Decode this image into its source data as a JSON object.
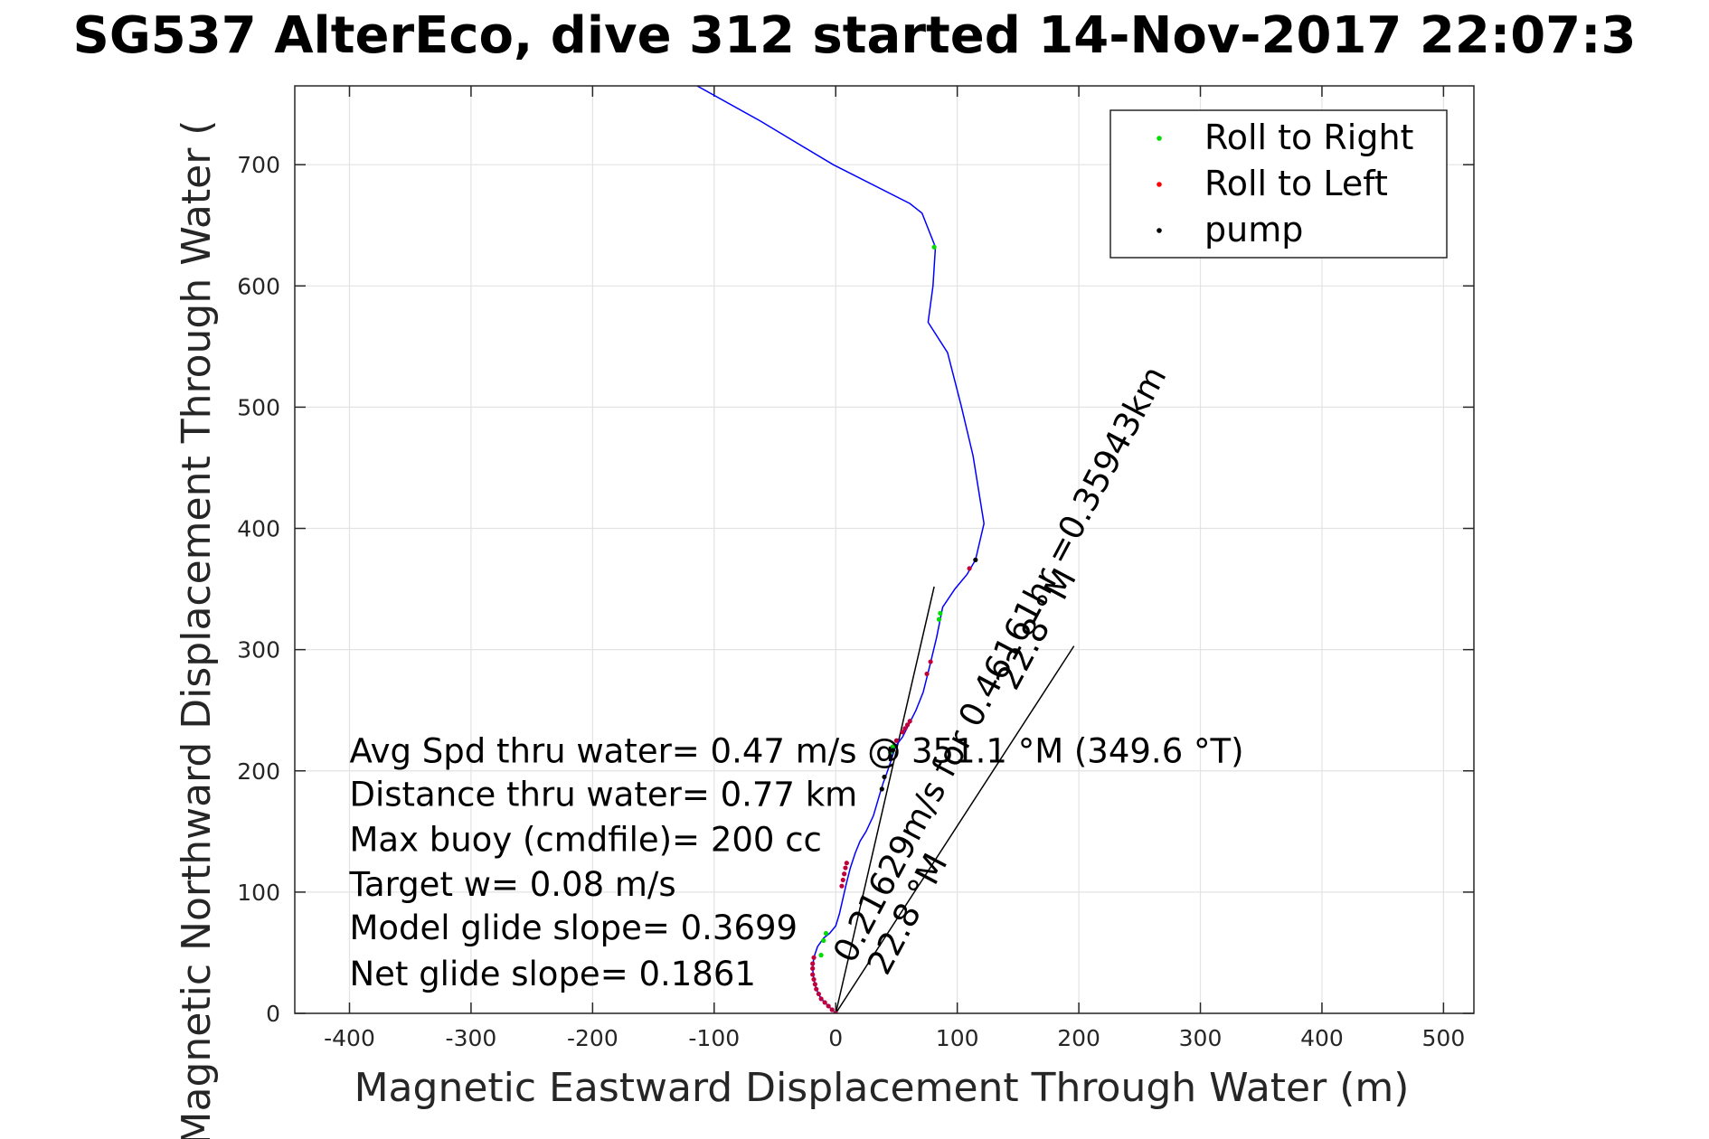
{
  "chart_data": {
    "type": "line",
    "title": "SG537 AlterEco, dive 312 started 14-Nov-2017 22:07:3",
    "xlabel": "Magnetic Eastward Displacement Through Water (m)",
    "ylabel": "Magnetic Northward Displacement Through Water (",
    "xlim": [
      -445,
      525
    ],
    "ylim": [
      0,
      765
    ],
    "xticks": [
      -400,
      -300,
      -200,
      -100,
      0,
      100,
      200,
      300,
      400,
      500
    ],
    "yticks": [
      0,
      100,
      200,
      300,
      400,
      500,
      600,
      700
    ],
    "grid": true,
    "legend": {
      "placement": "top-right",
      "entries": [
        {
          "label": "Roll to Right",
          "color": "#00dd00"
        },
        {
          "label": "Roll to Left",
          "color": "#ff0000"
        },
        {
          "label": "pump",
          "color": "#000000"
        }
      ]
    },
    "track": {
      "color": "#0000ff",
      "points": [
        [
          0,
          0
        ],
        [
          -6,
          6
        ],
        [
          -12,
          12
        ],
        [
          -16,
          20
        ],
        [
          -18,
          28
        ],
        [
          -19,
          37
        ],
        [
          -18,
          46
        ],
        [
          -15,
          55
        ],
        [
          -10,
          62
        ],
        [
          -5,
          66
        ],
        [
          0,
          72
        ],
        [
          3,
          82
        ],
        [
          6,
          95
        ],
        [
          9,
          108
        ],
        [
          12,
          120
        ],
        [
          16,
          132
        ],
        [
          20,
          142
        ],
        [
          25,
          150
        ],
        [
          31,
          163
        ],
        [
          36,
          180
        ],
        [
          39,
          190
        ],
        [
          42,
          198
        ],
        [
          46,
          210
        ],
        [
          49,
          220
        ],
        [
          55,
          228
        ],
        [
          60,
          238
        ],
        [
          66,
          250
        ],
        [
          72,
          265
        ],
        [
          77,
          285
        ],
        [
          83,
          310
        ],
        [
          88,
          335
        ],
        [
          98,
          350
        ],
        [
          108,
          362
        ],
        [
          115,
          374
        ],
        [
          122,
          404
        ],
        [
          113,
          460
        ],
        [
          103,
          502
        ],
        [
          92,
          545
        ],
        [
          76,
          570
        ],
        [
          80,
          600
        ],
        [
          82,
          632
        ],
        [
          71,
          660
        ],
        [
          61,
          668
        ],
        [
          -2,
          700
        ],
        [
          -62,
          736
        ],
        [
          -123,
          770
        ]
      ]
    },
    "roll_right": [
      [
        -12,
        48
      ],
      [
        -10,
        60
      ],
      [
        -8,
        66
      ],
      [
        45,
        215
      ],
      [
        47,
        220
      ],
      [
        85,
        325
      ],
      [
        86,
        330
      ],
      [
        81,
        632
      ]
    ],
    "roll_left": [
      [
        0,
        0
      ],
      [
        -3,
        3
      ],
      [
        -6,
        6
      ],
      [
        -9,
        9
      ],
      [
        -12,
        12
      ],
      [
        -14,
        16
      ],
      [
        -16,
        20
      ],
      [
        -17,
        24
      ],
      [
        -18,
        28
      ],
      [
        -19,
        32
      ],
      [
        -19,
        37
      ],
      [
        -19,
        41
      ],
      [
        -18,
        46
      ],
      [
        5,
        105
      ],
      [
        6,
        110
      ],
      [
        7,
        115
      ],
      [
        8,
        120
      ],
      [
        9,
        124
      ],
      [
        55,
        232
      ],
      [
        57,
        235
      ],
      [
        59,
        238
      ],
      [
        61,
        241
      ],
      [
        110,
        367
      ],
      [
        50,
        225
      ],
      [
        75,
        280
      ],
      [
        78,
        290
      ]
    ],
    "pump": [
      [
        38,
        185
      ],
      [
        40,
        195
      ],
      [
        45,
        212
      ],
      [
        47,
        217
      ],
      [
        115,
        374
      ]
    ],
    "reference_lines": [
      {
        "from": [
          0,
          0
        ],
        "to": [
          81,
          352
        ]
      },
      {
        "from": [
          0,
          0
        ],
        "to": [
          196,
          303
        ]
      }
    ],
    "annotations": [
      {
        "text": "Avg Spd thru water=  0.47 m/s @ 351.1 °M (349.6 °T)",
        "x": -400,
        "y": 207
      },
      {
        "text": "Distance thru water=  0.77 km",
        "x": -400,
        "y": 171
      },
      {
        "text": "Max buoy (cmdfile)= 200 cc",
        "x": -400,
        "y": 134
      },
      {
        "text": "Target w= 0.08 m/s",
        "x": -400,
        "y": 97
      },
      {
        "text": "Model glide slope= 0.3699",
        "x": -400,
        "y": 61
      },
      {
        "text": "Net glide slope= 0.1861",
        "x": -400,
        "y": 23
      },
      {
        "text": "0.21629m/s for 0.46161hr =0.35943km",
        "x": 14,
        "y": 40,
        "angle": -62
      },
      {
        "text": "22.8 °M",
        "x": 42,
        "y": 30,
        "angle": -62
      },
      {
        "text": "22.8 °M",
        "x": 148,
        "y": 265,
        "angle": -62
      }
    ]
  }
}
